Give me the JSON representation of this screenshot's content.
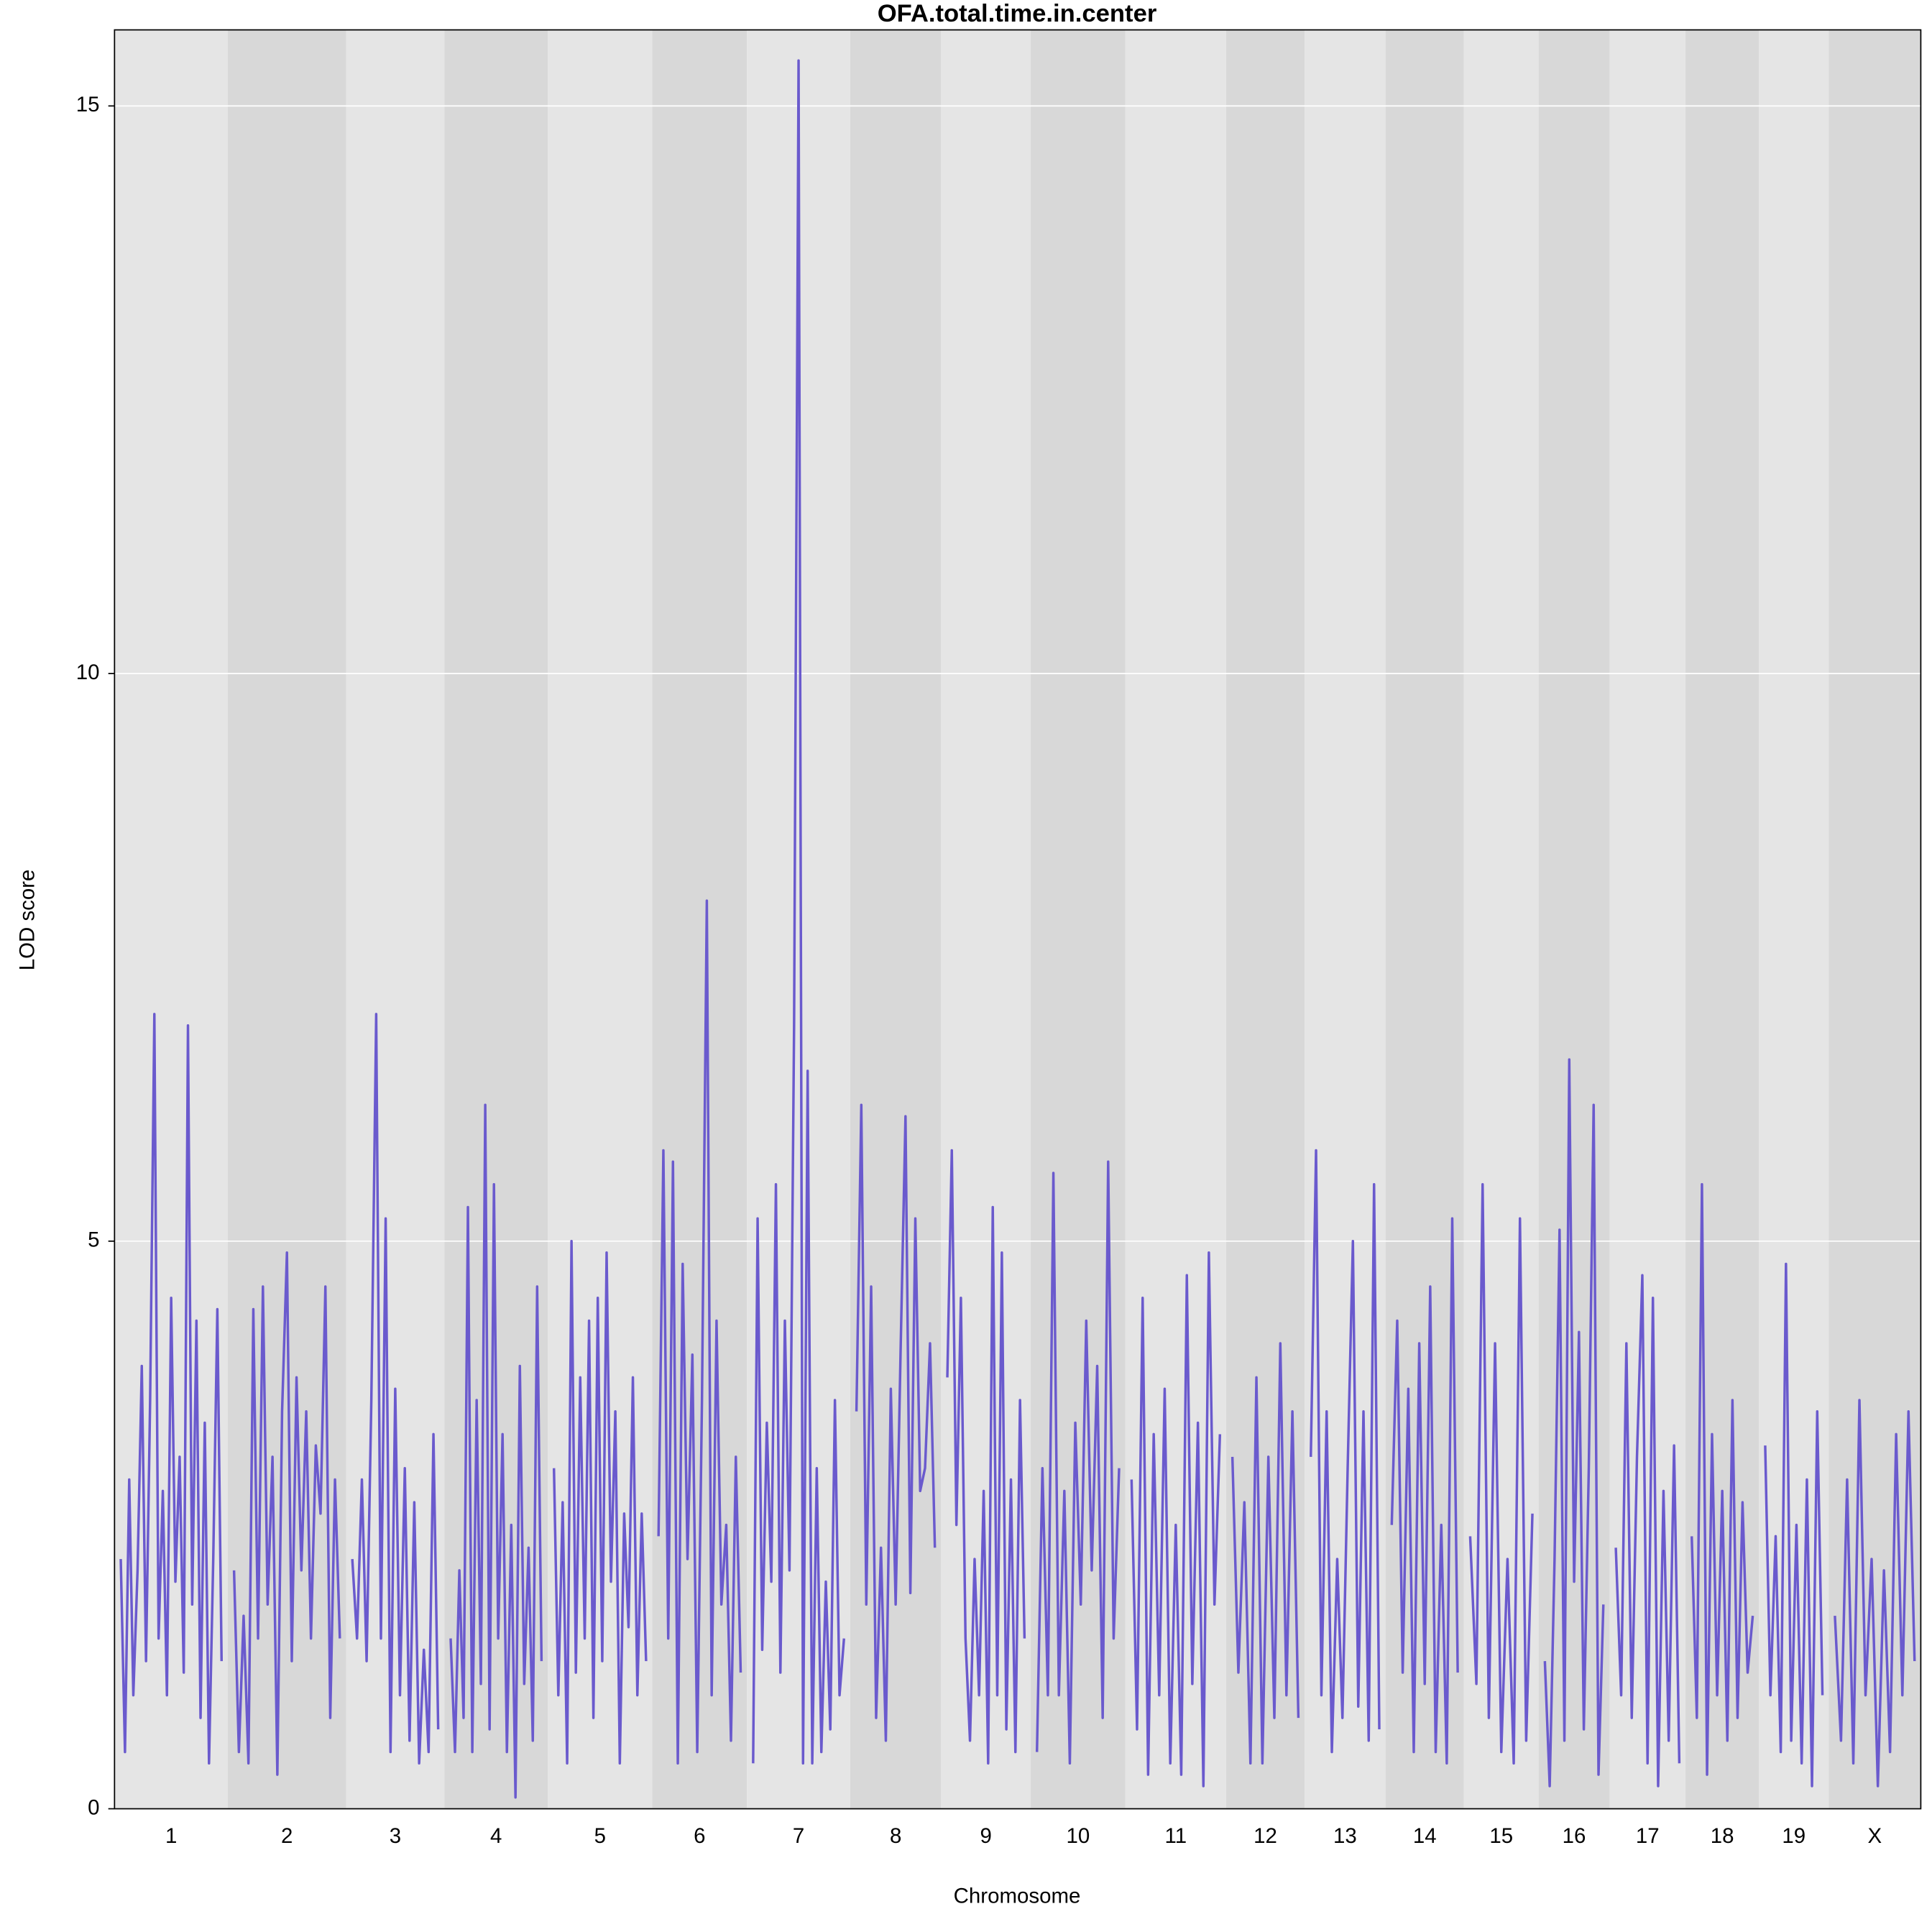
{
  "chart_data": {
    "type": "line",
    "title": "OFA.total.time.in.center",
    "x_label": "Chromosome",
    "y_label": "LOD score",
    "color": "#6a5acd",
    "grid": true,
    "ylim": [
      0,
      15.67
    ],
    "yticks": [
      0,
      5,
      10,
      15
    ],
    "chromosomes": [
      {
        "name": "1",
        "values": [
          2.2,
          0.5,
          2.9,
          1.0,
          2.1,
          3.9,
          1.3,
          3.6,
          7.0,
          1.5,
          2.8,
          1.0,
          4.5,
          2.0,
          3.1,
          1.2,
          6.9,
          1.8,
          4.3,
          0.8,
          3.4,
          0.4,
          2.2,
          4.4,
          1.3
        ]
      },
      {
        "name": "2",
        "values": [
          2.1,
          0.5,
          1.7,
          0.4,
          4.4,
          1.5,
          4.6,
          1.8,
          3.1,
          0.3,
          3.5,
          4.9,
          1.3,
          3.8,
          2.1,
          3.5,
          1.5,
          3.2,
          2.6,
          4.6,
          0.8,
          2.9,
          1.5
        ]
      },
      {
        "name": "3",
        "values": [
          2.2,
          1.5,
          2.9,
          1.3,
          3.6,
          7.0,
          1.5,
          5.2,
          0.5,
          3.7,
          1.0,
          3.0,
          0.6,
          2.7,
          0.4,
          1.4,
          0.5,
          3.3,
          0.7
        ]
      },
      {
        "name": "4",
        "values": [
          1.5,
          0.5,
          2.1,
          0.8,
          5.3,
          0.5,
          3.6,
          1.1,
          6.2,
          0.7,
          5.5,
          1.5,
          3.3,
          0.5,
          2.5,
          0.1,
          3.9,
          1.1,
          2.3,
          0.6,
          4.6,
          1.3
        ]
      },
      {
        "name": "5",
        "values": [
          3.0,
          1.0,
          2.7,
          0.4,
          5.0,
          1.2,
          3.8,
          1.5,
          4.3,
          0.8,
          4.5,
          1.3,
          4.9,
          2.0,
          3.5,
          0.4,
          2.6,
          1.6,
          3.8,
          1.0,
          2.6,
          1.3
        ]
      },
      {
        "name": "6",
        "values": [
          2.4,
          5.8,
          1.5,
          5.7,
          0.4,
          4.8,
          2.2,
          4.0,
          0.5,
          3.6,
          8.0,
          1.0,
          4.3,
          1.8,
          2.5,
          0.6,
          3.1,
          1.2
        ]
      },
      {
        "name": "7",
        "values": [
          0.4,
          5.2,
          1.4,
          3.4,
          2.0,
          5.5,
          1.2,
          4.3,
          2.1,
          6.9,
          15.4,
          0.4,
          6.5,
          0.4,
          3.0,
          0.5,
          2.0,
          0.7,
          3.6,
          1.0,
          1.5
        ]
      },
      {
        "name": "8",
        "values": [
          3.5,
          6.2,
          1.8,
          4.6,
          0.8,
          2.3,
          0.6,
          3.7,
          1.8,
          4.0,
          6.1,
          1.9,
          5.2,
          2.8,
          3.0,
          4.1,
          2.3
        ]
      },
      {
        "name": "9",
        "values": [
          3.8,
          5.8,
          2.5,
          4.5,
          1.5,
          0.6,
          2.2,
          1.0,
          2.8,
          0.4,
          5.3,
          1.0,
          4.9,
          0.7,
          2.9,
          0.5,
          3.6,
          1.5
        ]
      },
      {
        "name": "10",
        "values": [
          0.5,
          3.0,
          1.0,
          5.6,
          1.0,
          2.8,
          0.4,
          3.4,
          1.8,
          4.3,
          2.1,
          3.9,
          0.8,
          5.7,
          1.5,
          3.0
        ]
      },
      {
        "name": "11",
        "values": [
          2.9,
          0.7,
          4.5,
          0.3,
          3.3,
          1.0,
          3.7,
          0.4,
          2.5,
          0.3,
          4.7,
          1.1,
          3.4,
          0.2,
          4.9,
          1.8,
          3.3
        ]
      },
      {
        "name": "12",
        "values": [
          3.1,
          1.2,
          2.7,
          0.4,
          3.8,
          0.4,
          3.1,
          0.8,
          4.1,
          1.0,
          3.5,
          0.8
        ]
      },
      {
        "name": "13",
        "values": [
          3.1,
          5.8,
          1.0,
          3.5,
          0.5,
          2.2,
          0.8,
          3.0,
          5.0,
          0.9,
          3.5,
          0.6,
          5.5,
          0.7
        ]
      },
      {
        "name": "14",
        "values": [
          2.5,
          4.3,
          1.2,
          3.7,
          0.5,
          4.1,
          1.1,
          4.6,
          0.5,
          2.5,
          0.4,
          5.2,
          1.2
        ]
      },
      {
        "name": "15",
        "values": [
          2.4,
          1.1,
          5.5,
          0.8,
          4.1,
          0.5,
          2.2,
          0.4,
          5.2,
          0.6,
          2.6
        ]
      },
      {
        "name": "16",
        "values": [
          1.3,
          0.2,
          2.2,
          5.1,
          0.6,
          6.6,
          2.0,
          4.2,
          0.7,
          3.0,
          6.2,
          0.3,
          1.8
        ]
      },
      {
        "name": "17",
        "values": [
          2.3,
          1.0,
          4.1,
          0.8,
          3.1,
          4.7,
          0.4,
          4.5,
          0.2,
          2.8,
          0.6,
          3.2,
          0.4
        ]
      },
      {
        "name": "18",
        "values": [
          2.4,
          0.8,
          5.5,
          0.3,
          3.3,
          1.0,
          2.8,
          0.6,
          3.6,
          0.8,
          2.7,
          1.2,
          1.7
        ]
      },
      {
        "name": "19",
        "values": [
          3.2,
          1.0,
          2.4,
          0.5,
          4.8,
          0.6,
          2.5,
          0.4,
          2.9,
          0.2,
          3.5,
          1.0
        ]
      },
      {
        "name": "X",
        "values": [
          1.7,
          0.6,
          2.9,
          0.4,
          3.6,
          1.0,
          2.2,
          0.2,
          2.1,
          0.5,
          3.3,
          1.0,
          3.5,
          1.3
        ]
      }
    ]
  }
}
